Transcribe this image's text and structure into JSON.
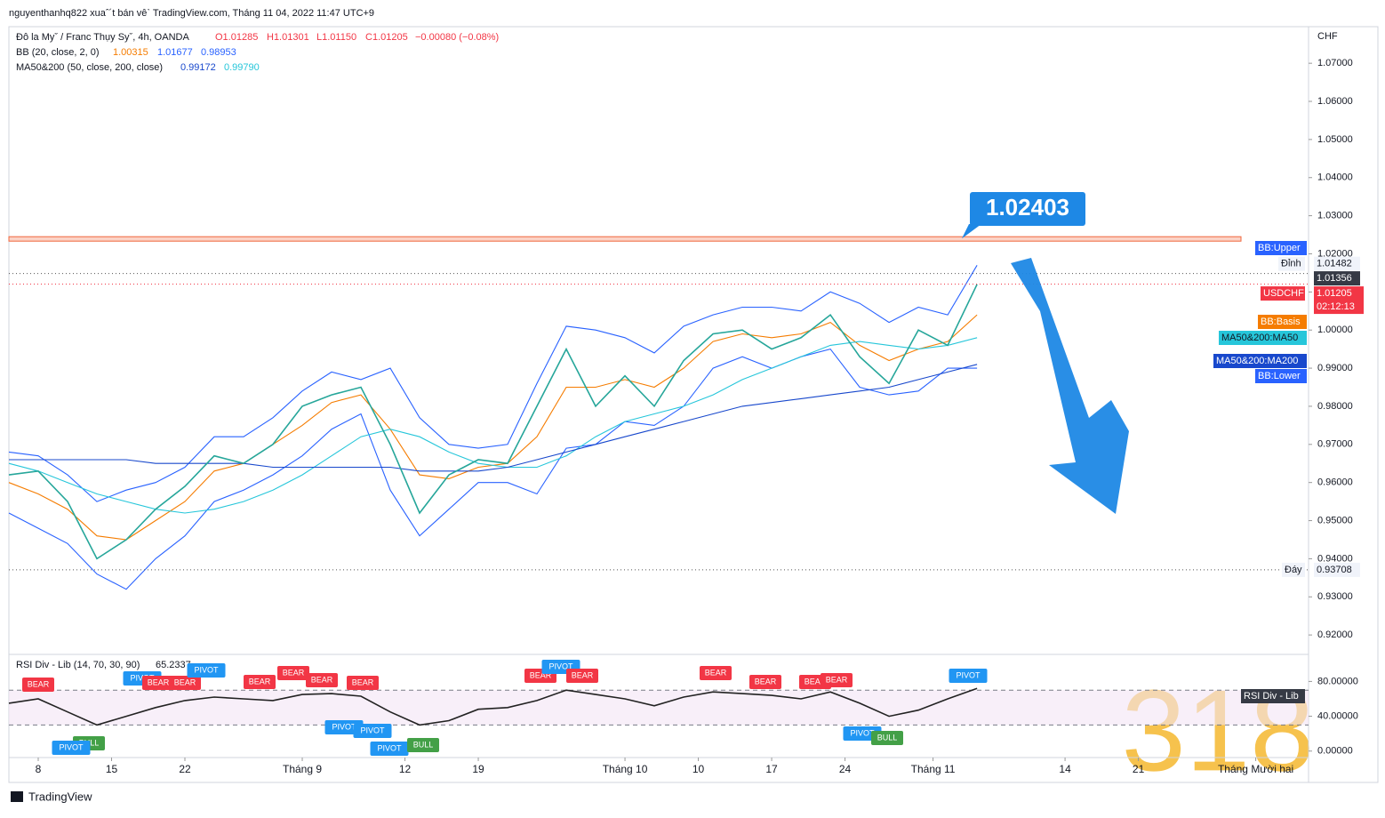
{
  "header": {
    "publisher": "nguyenthanhq822 xuaˆ´t bán vêˋ TradingView.com, Tháng 11 04, 2022 11:47 UTC+9",
    "symbol": "Đô la Myˇ / Franc Thụy Syˇ, 4h, OANDA",
    "open": "O1.01285",
    "high": "H1.01301",
    "low": "L1.01150",
    "close": "C1.01205",
    "change": "−0.00080 (−0.08%)",
    "bb_legend": "BB (20, close, 2, 0)",
    "bb_values": [
      "1.00315",
      "1.01677",
      "0.98953"
    ],
    "ma_legend": "MA50&200 (50, close, 200, close)",
    "ma_values": [
      "0.99172",
      "0.99790"
    ],
    "currency": "CHF",
    "brand": "TradingView",
    "watermark": "318"
  },
  "chart_data": [
    {
      "type": "line",
      "grid": false,
      "x": [
        -2,
        0,
        2,
        4,
        6,
        8,
        10,
        12,
        14,
        16,
        18,
        20,
        22,
        24,
        26,
        28,
        30,
        32,
        34,
        36,
        38,
        40,
        42,
        44,
        46,
        48,
        50,
        52,
        54,
        56,
        58,
        60,
        62,
        64
      ],
      "series": [
        {
          "name": "BB:Upper",
          "color": "#2962ff",
          "values": [
            0.968,
            0.967,
            0.962,
            0.955,
            0.958,
            0.96,
            0.964,
            0.972,
            0.972,
            0.977,
            0.984,
            0.989,
            0.987,
            0.99,
            0.977,
            0.97,
            0.969,
            0.97,
            0.986,
            1.001,
            1.0,
            0.998,
            0.994,
            1.001,
            1.004,
            1.006,
            1.006,
            1.005,
            1.01,
            1.007,
            1.002,
            1.006,
            1.004,
            1.017
          ]
        },
        {
          "name": "BB:Basis",
          "color": "#f57c00",
          "values": [
            0.96,
            0.957,
            0.953,
            0.946,
            0.945,
            0.95,
            0.955,
            0.963,
            0.965,
            0.97,
            0.975,
            0.981,
            0.983,
            0.974,
            0.962,
            0.961,
            0.964,
            0.965,
            0.972,
            0.985,
            0.985,
            0.987,
            0.985,
            0.99,
            0.997,
            0.999,
            0.998,
            0.999,
            1.002,
            0.996,
            0.992,
            0.995,
            0.997,
            1.004
          ]
        },
        {
          "name": "BB:Lower",
          "color": "#2962ff",
          "values": [
            0.952,
            0.948,
            0.944,
            0.936,
            0.932,
            0.94,
            0.946,
            0.955,
            0.958,
            0.962,
            0.967,
            0.974,
            0.978,
            0.958,
            0.946,
            0.953,
            0.96,
            0.96,
            0.957,
            0.969,
            0.97,
            0.976,
            0.975,
            0.98,
            0.99,
            0.993,
            0.99,
            0.993,
            0.995,
            0.985,
            0.983,
            0.984,
            0.99,
            0.99
          ]
        },
        {
          "name": "MA50&200:MA50",
          "color": "#26c6da",
          "values": [
            0.965,
            0.963,
            0.96,
            0.957,
            0.955,
            0.953,
            0.952,
            0.953,
            0.955,
            0.958,
            0.962,
            0.967,
            0.972,
            0.974,
            0.972,
            0.968,
            0.965,
            0.964,
            0.964,
            0.967,
            0.972,
            0.976,
            0.978,
            0.98,
            0.983,
            0.987,
            0.99,
            0.993,
            0.996,
            0.997,
            0.996,
            0.995,
            0.996,
            0.998
          ]
        },
        {
          "name": "MA50&200:MA200",
          "color": "#1848cc",
          "values": [
            0.966,
            0.966,
            0.966,
            0.966,
            0.966,
            0.965,
            0.965,
            0.965,
            0.965,
            0.964,
            0.964,
            0.964,
            0.964,
            0.964,
            0.963,
            0.963,
            0.963,
            0.964,
            0.966,
            0.968,
            0.97,
            0.972,
            0.974,
            0.976,
            0.978,
            0.98,
            0.981,
            0.982,
            0.983,
            0.984,
            0.985,
            0.987,
            0.989,
            0.991
          ]
        },
        {
          "name": "USDCHF",
          "color": "#26a69a",
          "values": [
            0.962,
            0.963,
            0.955,
            0.94,
            0.945,
            0.953,
            0.959,
            0.967,
            0.965,
            0.97,
            0.98,
            0.983,
            0.985,
            0.97,
            0.952,
            0.962,
            0.966,
            0.965,
            0.98,
            0.995,
            0.98,
            0.988,
            0.98,
            0.992,
            0.999,
            1.0,
            0.995,
            0.998,
            1.004,
            0.993,
            0.986,
            1.0,
            0.996,
            1.012
          ]
        }
      ],
      "xlim": [
        -2,
        86.6
      ],
      "xticks": [
        {
          "value": 0,
          "label": "8"
        },
        {
          "value": 5,
          "label": "15"
        },
        {
          "value": 10,
          "label": "22"
        },
        {
          "value": 18,
          "label": "Tháng 9"
        },
        {
          "value": 25,
          "label": "12"
        },
        {
          "value": 30,
          "label": "19"
        },
        {
          "value": 40,
          "label": "Tháng 10"
        },
        {
          "value": 45,
          "label": "10"
        },
        {
          "value": 50,
          "label": "17"
        },
        {
          "value": 55,
          "label": "24"
        },
        {
          "value": 61,
          "label": "Tháng 11"
        },
        {
          "value": 70,
          "label": "14"
        },
        {
          "value": 75,
          "label": "21"
        },
        {
          "value": 83,
          "label": "Tháng Mười hai"
        }
      ],
      "ylim": [
        0.9149,
        1.0796
      ],
      "yticks": [
        {
          "value": 0.92,
          "label": "0.92000"
        },
        {
          "value": 0.93,
          "label": "0.93000"
        },
        {
          "value": 0.94,
          "label": "0.94000"
        },
        {
          "value": 0.95,
          "label": "0.95000"
        },
        {
          "value": 0.96,
          "label": "0.96000"
        },
        {
          "value": 0.97,
          "label": "0.97000"
        },
        {
          "value": 0.98,
          "label": "0.98000"
        },
        {
          "value": 0.99,
          "label": "0.99000"
        },
        {
          "value": 1.0,
          "label": "1.00000"
        },
        {
          "value": 1.01,
          "label": "1.01000"
        },
        {
          "value": 1.02,
          "label": "1.02000"
        },
        {
          "value": 1.03,
          "label": "1.03000"
        },
        {
          "value": 1.04,
          "label": "1.04000"
        },
        {
          "value": 1.05,
          "label": "1.05000"
        },
        {
          "value": 1.06,
          "label": "1.06000"
        },
        {
          "value": 1.07,
          "label": "1.07000"
        }
      ],
      "resistance": {
        "value": 1.02403,
        "label": "1.02403"
      },
      "high_label": "Đỉnh",
      "high": 1.01482,
      "current": 1.01356,
      "last_price": 1.01205,
      "countdown": "02:12:13",
      "low_label": "Đáy",
      "low": 0.93708
    },
    {
      "type": "line",
      "title": "RSI Div - Lib (14, 70, 30, 90)",
      "last_value": "65.2337",
      "tag": "RSI Div - Lib",
      "series": [
        {
          "name": "RSI",
          "color": "#222222",
          "values": [
            55,
            60,
            45,
            30,
            40,
            50,
            58,
            62,
            60,
            58,
            65,
            66,
            63,
            45,
            30,
            35,
            48,
            50,
            58,
            70,
            65,
            60,
            52,
            62,
            68,
            66,
            64,
            60,
            68,
            55,
            40,
            47,
            60,
            72
          ]
        }
      ],
      "levels": [
        70,
        30
      ],
      "ylim": [
        -36,
        109
      ],
      "yticks": [
        {
          "value": 80,
          "label": "80.00000"
        },
        {
          "value": 40,
          "label": "40.00000"
        },
        {
          "value": 0,
          "label": "0.00000"
        }
      ],
      "badges": [
        {
          "label": "BEAR",
          "color": "#f23645"
        },
        {
          "label": "PIVOT",
          "color": "#2196f3"
        },
        {
          "label": "BULL",
          "color": "#43a047"
        },
        {
          "label": "PIVOT",
          "color": "#2196f3"
        },
        {
          "label": "BEAR",
          "color": "#f23645"
        },
        {
          "label": "BEAR",
          "color": "#f23645"
        },
        {
          "label": "PIVOT",
          "color": "#2196f3"
        },
        {
          "label": "BEAR",
          "color": "#f23645"
        },
        {
          "label": "BEAR",
          "color": "#f23645"
        },
        {
          "label": "BEAR",
          "color": "#f23645"
        },
        {
          "label": "BEAR",
          "color": "#f23645"
        },
        {
          "label": "PIVOT",
          "color": "#2196f3"
        },
        {
          "label": "PIVOT",
          "color": "#2196f3"
        },
        {
          "label": "PIVOT",
          "color": "#2196f3"
        },
        {
          "label": "BULL",
          "color": "#43a047"
        },
        {
          "label": "BEAR",
          "color": "#f23645"
        },
        {
          "label": "PIVOT",
          "color": "#2196f3"
        },
        {
          "label": "BEAR",
          "color": "#f23645"
        },
        {
          "label": "BEAR",
          "color": "#f23645"
        },
        {
          "label": "BEAR",
          "color": "#f23645"
        },
        {
          "label": "BEAR",
          "color": "#f23645"
        },
        {
          "label": "BEAR",
          "color": "#f23645"
        },
        {
          "label": "PIVOT",
          "color": "#2196f3"
        },
        {
          "label": "BULL",
          "color": "#43a047"
        },
        {
          "label": "PIVOT",
          "color": "#2196f3"
        }
      ]
    }
  ]
}
